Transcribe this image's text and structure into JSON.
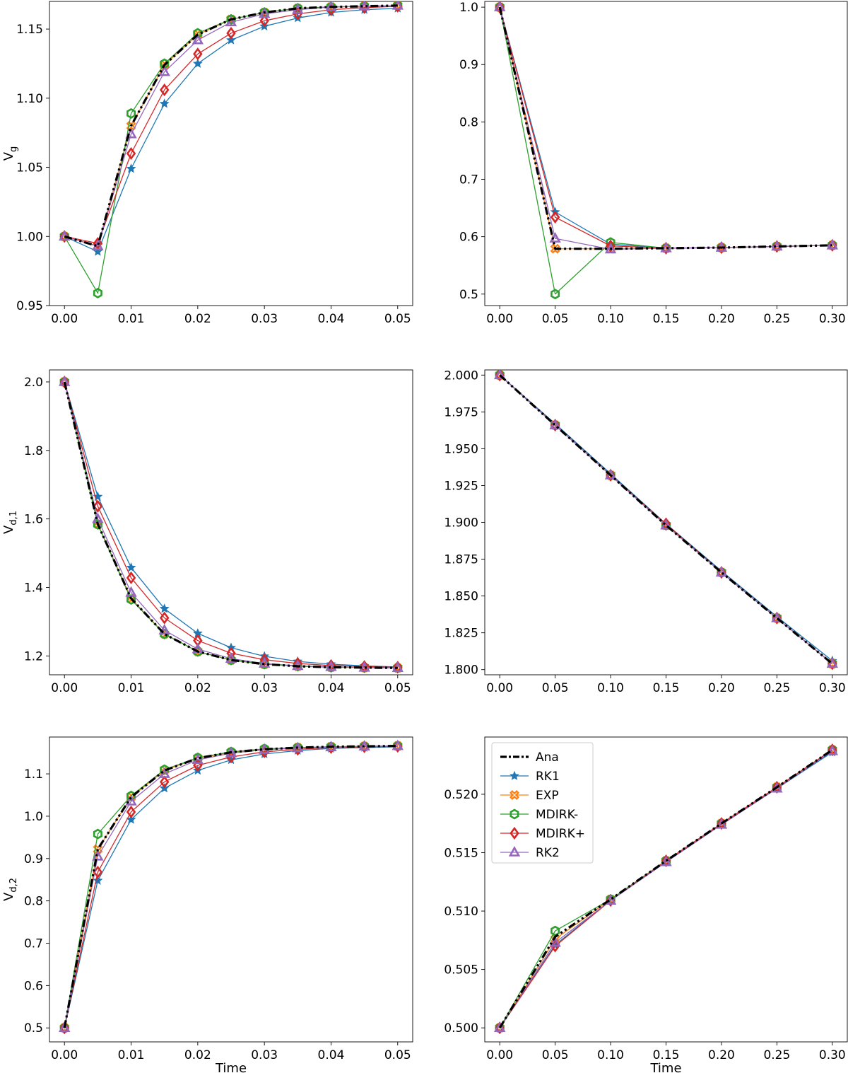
{
  "legend": {
    "entries": [
      {
        "name": "Ana",
        "color": "#000000",
        "marker": "none",
        "style": "dashdot"
      },
      {
        "name": "RK1",
        "color": "#1f77b4",
        "marker": "star"
      },
      {
        "name": "EXP",
        "color": "#ff7f0e",
        "marker": "x"
      },
      {
        "name": "MDIRK-",
        "color": "#2ca02c",
        "marker": "hexagon"
      },
      {
        "name": "MDIRK+",
        "color": "#d62728",
        "marker": "diamond"
      },
      {
        "name": "RK2",
        "color": "#9467bd",
        "marker": "triangle"
      }
    ]
  },
  "chart_data": [
    {
      "id": "p1",
      "type": "line",
      "ylabel": "V",
      "ylabel_sub": "g",
      "xlabel": "",
      "xlim": [
        0,
        0.05
      ],
      "ylim": [
        0.95,
        1.17
      ],
      "xticks": [
        0,
        0.01,
        0.02,
        0.03,
        0.04,
        0.05
      ],
      "xtick_labels": [
        "0.00",
        "0.01",
        "0.02",
        "0.03",
        "0.04",
        "0.05"
      ],
      "yticks": [
        0.95,
        1.0,
        1.05,
        1.1,
        1.15
      ],
      "ytick_labels": [
        "0.95",
        "1.00",
        "1.05",
        "1.10",
        "1.15"
      ],
      "x": [
        0,
        0.005,
        0.01,
        0.015,
        0.02,
        0.025,
        0.03,
        0.035,
        0.04,
        0.045,
        0.05
      ],
      "series": [
        {
          "name": "Ana",
          "values": [
            1.0,
            0.993,
            1.08,
            1.124,
            1.146,
            1.157,
            1.162,
            1.165,
            1.166,
            1.1665,
            1.167
          ]
        },
        {
          "name": "RK1",
          "values": [
            1.0,
            0.989,
            1.049,
            1.096,
            1.125,
            1.142,
            1.152,
            1.158,
            1.162,
            1.164,
            1.165
          ]
        },
        {
          "name": "EXP",
          "values": [
            1.0,
            0.993,
            1.08,
            1.124,
            1.146,
            1.157,
            1.162,
            1.165,
            1.166,
            1.1665,
            1.167
          ]
        },
        {
          "name": "MDIRK-",
          "values": [
            1.0,
            0.959,
            1.089,
            1.125,
            1.147,
            1.157,
            1.162,
            1.165,
            1.166,
            1.1665,
            1.167
          ]
        },
        {
          "name": "MDIRK+",
          "values": [
            1.0,
            0.995,
            1.06,
            1.106,
            1.132,
            1.147,
            1.156,
            1.161,
            1.164,
            1.1655,
            1.1665
          ]
        },
        {
          "name": "RK2",
          "values": [
            1.0,
            0.993,
            1.074,
            1.119,
            1.142,
            1.155,
            1.161,
            1.164,
            1.166,
            1.1665,
            1.167
          ]
        }
      ]
    },
    {
      "id": "p2",
      "type": "line",
      "ylabel": "",
      "ylabel_sub": "",
      "xlabel": "",
      "xlim": [
        0,
        0.3
      ],
      "ylim": [
        0.48,
        1.01
      ],
      "xticks": [
        0,
        0.05,
        0.1,
        0.15,
        0.2,
        0.25,
        0.3
      ],
      "xtick_labels": [
        "0.00",
        "0.05",
        "0.10",
        "0.15",
        "0.20",
        "0.25",
        "0.30"
      ],
      "yticks": [
        0.5,
        0.6,
        0.7,
        0.8,
        0.9,
        1.0
      ],
      "ytick_labels": [
        "0.5",
        "0.6",
        "0.7",
        "0.8",
        "0.9",
        "1.0"
      ],
      "x": [
        0,
        0.05,
        0.1,
        0.15,
        0.2,
        0.25,
        0.3
      ],
      "series": [
        {
          "name": "Ana",
          "values": [
            1.0,
            0.579,
            0.579,
            0.58,
            0.581,
            0.583,
            0.585
          ]
        },
        {
          "name": "RK1",
          "values": [
            1.0,
            0.643,
            0.587,
            0.58,
            0.581,
            0.583,
            0.585
          ]
        },
        {
          "name": "EXP",
          "values": [
            1.0,
            0.579,
            0.579,
            0.58,
            0.581,
            0.583,
            0.585
          ]
        },
        {
          "name": "MDIRK-",
          "values": [
            1.0,
            0.5,
            0.59,
            0.58,
            0.581,
            0.583,
            0.585
          ]
        },
        {
          "name": "MDIRK+",
          "values": [
            1.0,
            0.634,
            0.584,
            0.58,
            0.581,
            0.583,
            0.585
          ]
        },
        {
          "name": "RK2",
          "values": [
            1.0,
            0.597,
            0.578,
            0.58,
            0.581,
            0.583,
            0.585
          ]
        }
      ]
    },
    {
      "id": "p3",
      "type": "line",
      "ylabel": "V",
      "ylabel_sub": "d,1",
      "xlabel": "",
      "xlim": [
        0,
        0.05
      ],
      "ylim": [
        1.145,
        2.035
      ],
      "xticks": [
        0,
        0.01,
        0.02,
        0.03,
        0.04,
        0.05
      ],
      "xtick_labels": [
        "0.00",
        "0.01",
        "0.02",
        "0.03",
        "0.04",
        "0.05"
      ],
      "yticks": [
        1.2,
        1.4,
        1.6,
        1.8,
        2.0
      ],
      "ytick_labels": [
        "1.2",
        "1.4",
        "1.6",
        "1.8",
        "2.0"
      ],
      "x": [
        0,
        0.005,
        0.01,
        0.015,
        0.02,
        0.025,
        0.03,
        0.035,
        0.04,
        0.045,
        0.05
      ],
      "series": [
        {
          "name": "Ana",
          "values": [
            2.0,
            1.585,
            1.368,
            1.264,
            1.213,
            1.188,
            1.176,
            1.17,
            1.167,
            1.166,
            1.165
          ]
        },
        {
          "name": "RK1",
          "values": [
            2.0,
            1.665,
            1.458,
            1.338,
            1.266,
            1.224,
            1.199,
            1.184,
            1.176,
            1.171,
            1.168
          ]
        },
        {
          "name": "EXP",
          "values": [
            2.0,
            1.585,
            1.368,
            1.264,
            1.213,
            1.188,
            1.176,
            1.17,
            1.167,
            1.166,
            1.165
          ]
        },
        {
          "name": "MDIRK-",
          "values": [
            2.0,
            1.584,
            1.365,
            1.264,
            1.213,
            1.188,
            1.176,
            1.17,
            1.167,
            1.166,
            1.165
          ]
        },
        {
          "name": "MDIRK+",
          "values": [
            2.0,
            1.637,
            1.428,
            1.311,
            1.245,
            1.208,
            1.189,
            1.178,
            1.172,
            1.169,
            1.167
          ]
        },
        {
          "name": "RK2",
          "values": [
            2.0,
            1.6,
            1.385,
            1.275,
            1.22,
            1.192,
            1.178,
            1.171,
            1.168,
            1.166,
            1.165
          ]
        }
      ]
    },
    {
      "id": "p4",
      "type": "line",
      "ylabel": "",
      "ylabel_sub": "",
      "xlabel": "",
      "xlim": [
        0,
        0.3
      ],
      "ylim": [
        1.7965,
        2.0035
      ],
      "xticks": [
        0,
        0.05,
        0.1,
        0.15,
        0.2,
        0.25,
        0.3
      ],
      "xtick_labels": [
        "0.00",
        "0.05",
        "0.10",
        "0.15",
        "0.20",
        "0.25",
        "0.30"
      ],
      "yticks": [
        1.8,
        1.825,
        1.85,
        1.875,
        1.9,
        1.925,
        1.95,
        1.975,
        2.0
      ],
      "ytick_labels": [
        "1.800",
        "1.825",
        "1.850",
        "1.875",
        "1.900",
        "1.925",
        "1.950",
        "1.975",
        "2.000"
      ],
      "x": [
        0,
        0.05,
        0.1,
        0.15,
        0.2,
        0.25,
        0.3
      ],
      "series": [
        {
          "name": "Ana",
          "values": [
            2.0,
            1.966,
            1.932,
            1.898,
            1.866,
            1.835,
            1.804
          ]
        },
        {
          "name": "RK1",
          "values": [
            2.0,
            1.967,
            1.933,
            1.899,
            1.867,
            1.836,
            1.806
          ]
        },
        {
          "name": "EXP",
          "values": [
            2.0,
            1.966,
            1.932,
            1.898,
            1.866,
            1.835,
            1.804
          ]
        },
        {
          "name": "MDIRK-",
          "values": [
            2.0,
            1.966,
            1.932,
            1.898,
            1.866,
            1.835,
            1.804
          ]
        },
        {
          "name": "MDIRK+",
          "values": [
            2.0,
            1.966,
            1.932,
            1.899,
            1.866,
            1.835,
            1.804
          ]
        },
        {
          "name": "RK2",
          "values": [
            2.0,
            1.966,
            1.932,
            1.898,
            1.866,
            1.835,
            1.804
          ]
        }
      ]
    },
    {
      "id": "p5",
      "type": "line",
      "ylabel": "V",
      "ylabel_sub": "d,2",
      "xlabel": "Time",
      "xlim": [
        0,
        0.05
      ],
      "ylim": [
        0.467,
        1.187
      ],
      "xticks": [
        0,
        0.01,
        0.02,
        0.03,
        0.04,
        0.05
      ],
      "xtick_labels": [
        "0.00",
        "0.01",
        "0.02",
        "0.03",
        "0.04",
        "0.05"
      ],
      "yticks": [
        0.5,
        0.6,
        0.7,
        0.8,
        0.9,
        1.0,
        1.1
      ],
      "ytick_labels": [
        "0.5",
        "0.6",
        "0.7",
        "0.8",
        "0.9",
        "1.0",
        "1.1"
      ],
      "x": [
        0,
        0.005,
        0.01,
        0.015,
        0.02,
        0.025,
        0.03,
        0.035,
        0.04,
        0.045,
        0.05
      ],
      "series": [
        {
          "name": "Ana",
          "values": [
            0.5,
            0.922,
            1.045,
            1.108,
            1.137,
            1.151,
            1.158,
            1.162,
            1.164,
            1.165,
            1.166
          ]
        },
        {
          "name": "RK1",
          "values": [
            0.5,
            0.848,
            0.992,
            1.066,
            1.108,
            1.133,
            1.147,
            1.155,
            1.16,
            1.162,
            1.164
          ]
        },
        {
          "name": "EXP",
          "values": [
            0.5,
            0.922,
            1.045,
            1.108,
            1.137,
            1.151,
            1.158,
            1.162,
            1.164,
            1.165,
            1.166
          ]
        },
        {
          "name": "MDIRK-",
          "values": [
            0.5,
            0.958,
            1.048,
            1.11,
            1.138,
            1.152,
            1.159,
            1.162,
            1.164,
            1.165,
            1.166
          ]
        },
        {
          "name": "MDIRK+",
          "values": [
            0.5,
            0.868,
            1.01,
            1.081,
            1.12,
            1.14,
            1.152,
            1.158,
            1.162,
            1.164,
            1.165
          ]
        },
        {
          "name": "RK2",
          "values": [
            0.5,
            0.905,
            1.035,
            1.1,
            1.133,
            1.149,
            1.157,
            1.161,
            1.163,
            1.165,
            1.166
          ]
        }
      ]
    },
    {
      "id": "p6",
      "type": "line",
      "ylabel": "",
      "ylabel_sub": "",
      "xlabel": "Time",
      "xlim": [
        0,
        0.3
      ],
      "ylim": [
        0.4988,
        0.5249
      ],
      "xticks": [
        0,
        0.05,
        0.1,
        0.15,
        0.2,
        0.25,
        0.3
      ],
      "xtick_labels": [
        "0.00",
        "0.05",
        "0.10",
        "0.15",
        "0.20",
        "0.25",
        "0.30"
      ],
      "yticks": [
        0.5,
        0.505,
        0.51,
        0.515,
        0.52
      ],
      "ytick_labels": [
        "0.500",
        "0.505",
        "0.510",
        "0.515",
        "0.520"
      ],
      "x": [
        0,
        0.05,
        0.1,
        0.15,
        0.2,
        0.25,
        0.3
      ],
      "legend_loc": "upper-left",
      "series": [
        {
          "name": "Ana",
          "values": [
            0.5,
            0.5078,
            0.511,
            0.5143,
            0.5175,
            0.5206,
            0.5238
          ]
        },
        {
          "name": "RK1",
          "values": [
            0.5,
            0.5071,
            0.5109,
            0.5142,
            0.5174,
            0.5205,
            0.5236
          ]
        },
        {
          "name": "EXP",
          "values": [
            0.5,
            0.5076,
            0.511,
            0.5143,
            0.5175,
            0.5206,
            0.5238
          ]
        },
        {
          "name": "MDIRK-",
          "values": [
            0.5,
            0.5083,
            0.511,
            0.5143,
            0.5175,
            0.5206,
            0.5238
          ]
        },
        {
          "name": "MDIRK+",
          "values": [
            0.5,
            0.507,
            0.5109,
            0.5143,
            0.5175,
            0.5206,
            0.5238
          ]
        },
        {
          "name": "RK2",
          "values": [
            0.5,
            0.5073,
            0.5109,
            0.5142,
            0.5174,
            0.5205,
            0.5237
          ]
        }
      ]
    }
  ]
}
